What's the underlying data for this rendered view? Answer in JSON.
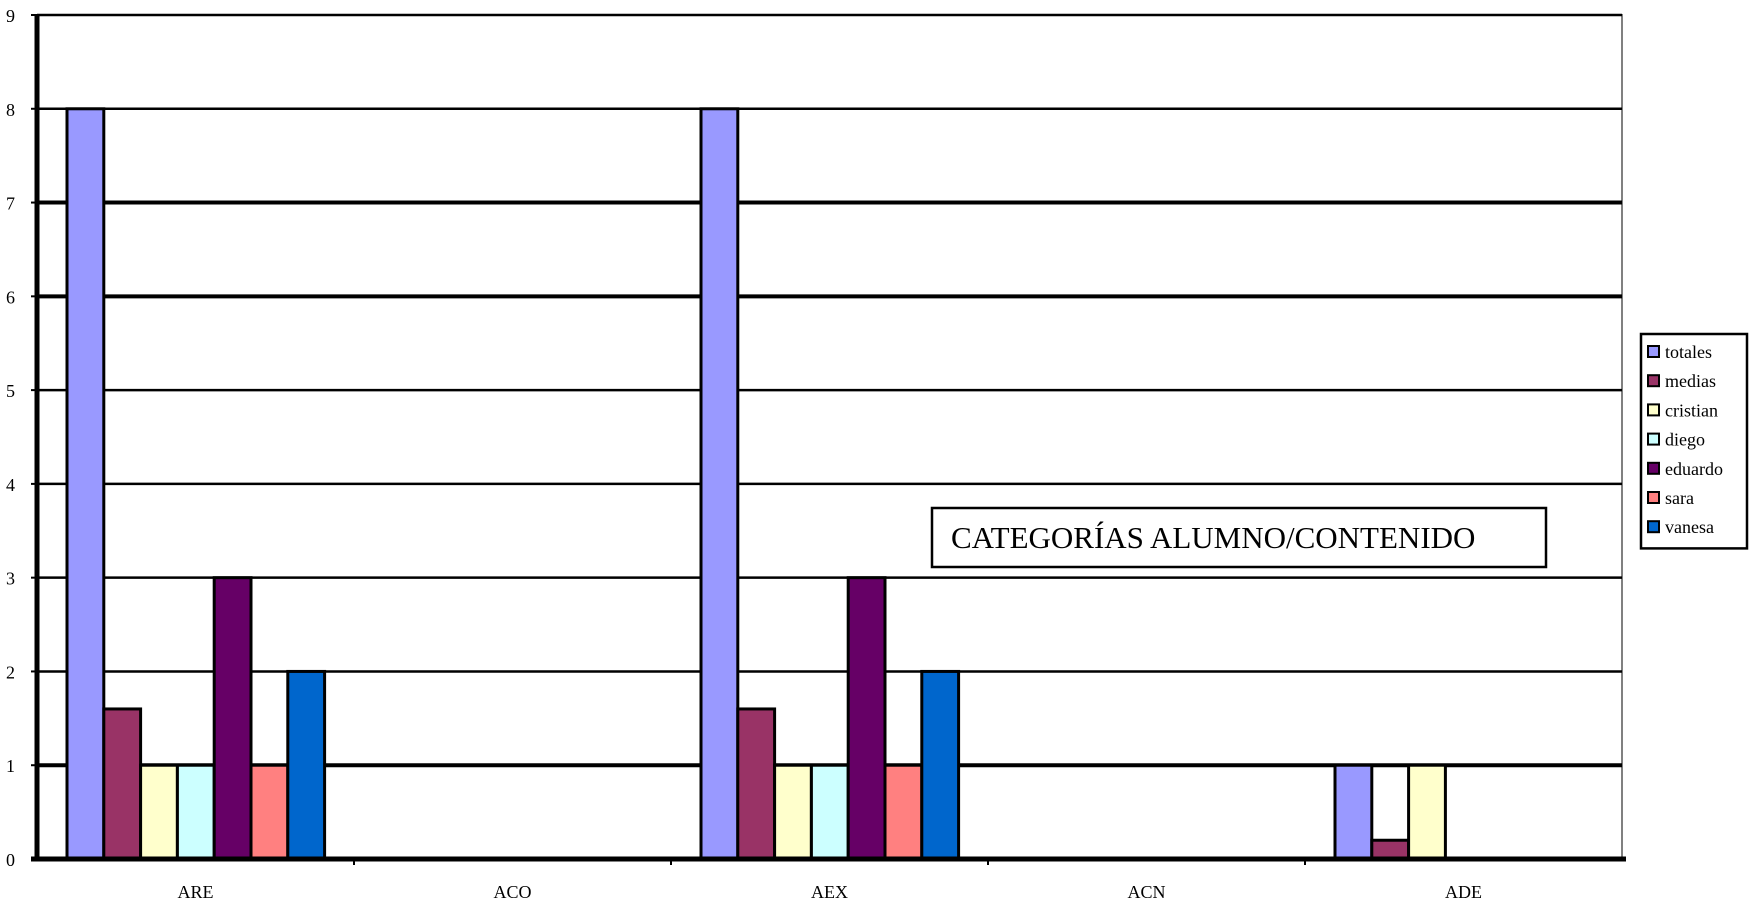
{
  "chart_data": {
    "type": "bar",
    "title": "CATEGORÍAS ALUMNO/CONTENIDO",
    "xlabel": "",
    "ylabel": "",
    "categories": [
      "ARE",
      "ACO",
      "AEX",
      "ACN",
      "ADE"
    ],
    "ylim": [
      0,
      9
    ],
    "yticks": [
      "0",
      "1",
      "2",
      "3",
      "4",
      "5",
      "6",
      "7",
      "8",
      "9"
    ],
    "grid": true,
    "legend_position": "right",
    "series": [
      {
        "name": "totales",
        "color": "#9999FF",
        "values": [
          8,
          0,
          8,
          0,
          1
        ]
      },
      {
        "name": "medias",
        "color": "#993366",
        "values": [
          1.6,
          0,
          1.6,
          0,
          0.2
        ]
      },
      {
        "name": "cristian",
        "color": "#FFFFCC",
        "values": [
          1,
          0,
          1,
          0,
          1
        ]
      },
      {
        "name": "diego",
        "color": "#CCFFFF",
        "values": [
          1,
          0,
          1,
          0,
          0
        ]
      },
      {
        "name": "eduardo",
        "color": "#660066",
        "values": [
          3,
          0,
          3,
          0,
          0
        ]
      },
      {
        "name": "sara",
        "color": "#FF8080",
        "values": [
          1,
          0,
          1,
          0,
          0
        ]
      },
      {
        "name": "vanesa",
        "color": "#0066CC",
        "values": [
          2,
          0,
          2,
          0,
          0
        ]
      }
    ]
  }
}
